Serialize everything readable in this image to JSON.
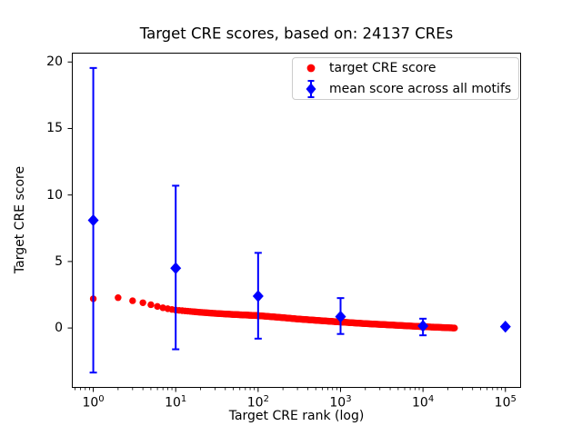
{
  "figure": {
    "background": "#ffffff",
    "text_color": "#000000"
  },
  "chart_data": {
    "type": "scatter",
    "title": "Target CRE scores, based on: 24137 CREs",
    "xlabel": "Target CRE rank (log)",
    "ylabel": "Target CRE score",
    "x_scale": "log",
    "xlim_log10": [
      -0.26,
      5.19
    ],
    "ylim": [
      -4.5,
      20.7
    ],
    "x_ticks_exponents": [
      0,
      1,
      2,
      3,
      4,
      5
    ],
    "y_ticks": [
      0,
      5,
      10,
      15,
      20
    ],
    "grid": false,
    "legend_position": "upper right",
    "series": [
      {
        "name": "target CRE score",
        "marker": "circle",
        "color": "#ff0000",
        "n_points": 24137,
        "sampled_points": [
          [
            1,
            2.2
          ],
          [
            2,
            2.28
          ],
          [
            3,
            2.05
          ],
          [
            4,
            1.9
          ],
          [
            5,
            1.75
          ],
          [
            6,
            1.62
          ],
          [
            7,
            1.52
          ],
          [
            8,
            1.45
          ],
          [
            10,
            1.35
          ],
          [
            15,
            1.25
          ],
          [
            20,
            1.18
          ],
          [
            30,
            1.1
          ],
          [
            50,
            1.02
          ],
          [
            100,
            0.93
          ],
          [
            200,
            0.78
          ],
          [
            300,
            0.68
          ],
          [
            500,
            0.58
          ],
          [
            1000,
            0.45
          ],
          [
            2000,
            0.33
          ],
          [
            5000,
            0.2
          ],
          [
            10000,
            0.1
          ],
          [
            24137,
            0.0
          ]
        ]
      },
      {
        "name": "mean score across all motifs",
        "marker": "diamond",
        "color": "#0000ff",
        "points": [
          {
            "x": 1,
            "y": 8.1,
            "err_plus": 11.45,
            "err_minus": 11.45
          },
          {
            "x": 10,
            "y": 4.5,
            "err_plus": 6.2,
            "err_minus": 6.1
          },
          {
            "x": 100,
            "y": 2.4,
            "err_plus": 3.25,
            "err_minus": 3.2
          },
          {
            "x": 1000,
            "y": 0.85,
            "err_plus": 1.4,
            "err_minus": 1.3
          },
          {
            "x": 10000,
            "y": 0.15,
            "err_plus": 0.55,
            "err_minus": 0.7
          },
          {
            "x": 100000,
            "y": 0.1,
            "err_plus": 0,
            "err_minus": 0
          }
        ]
      }
    ]
  }
}
